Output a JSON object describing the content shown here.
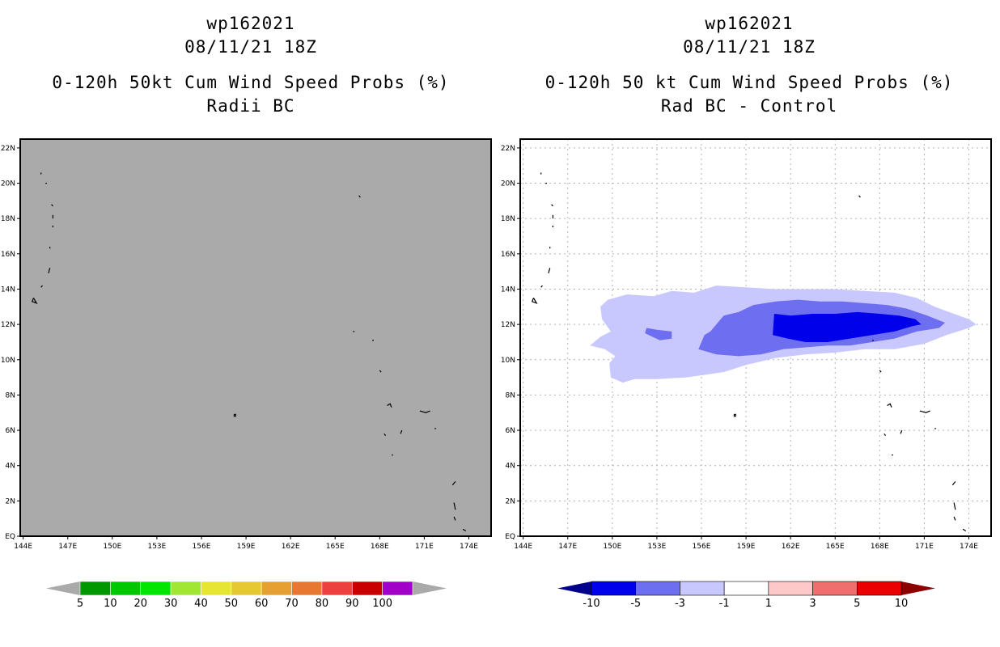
{
  "left_panel": {
    "title_line1": "wp162021",
    "title_line2": "08/11/21 18Z",
    "subtitle_line1": "0-120h 50kt Cum Wind Speed Probs (%)",
    "subtitle_line2": "Radii BC"
  },
  "right_panel": {
    "title_line1": "wp162021",
    "title_line2": "08/11/21 18Z",
    "subtitle_line1": "0-120h 50 kt Cum Wind Speed Probs (%)",
    "subtitle_line2": "Rad BC - Control"
  },
  "chart_data": [
    {
      "type": "heatmap",
      "title": "0-120h 50kt Cum Wind Speed Probs (%) Radii BC",
      "x_ticks": [
        "144E",
        "147E",
        "150E",
        "153E",
        "156E",
        "159E",
        "162E",
        "165E",
        "168E",
        "171E",
        "174E"
      ],
      "y_ticks": [
        "EQ",
        "2N",
        "4N",
        "6N",
        "8N",
        "10N",
        "12N",
        "14N",
        "16N",
        "18N",
        "20N",
        "22N"
      ],
      "xlim": [
        143.8,
        175.5
      ],
      "ylim": [
        0,
        22.5
      ],
      "field": "uniform gray (no probability contours)",
      "fill_color": "#aaaaaa",
      "colorbar": {
        "labels": [
          "5",
          "10",
          "20",
          "30",
          "40",
          "50",
          "60",
          "70",
          "80",
          "90",
          "100"
        ],
        "colors": [
          "#009700",
          "#00c800",
          "#00e600",
          "#a0e632",
          "#e6e632",
          "#e6c832",
          "#e6a032",
          "#e67832",
          "#ef4040",
          "#c80000",
          "#a000c8"
        ],
        "end_colors": [
          "#aaaaaa",
          "#aaaaaa"
        ]
      }
    },
    {
      "type": "heatmap",
      "title": "0-120h 50 kt Cum Wind Speed Probs (%) Rad BC - Control",
      "x_ticks": [
        "144E",
        "147E",
        "150E",
        "153E",
        "156E",
        "159E",
        "162E",
        "165E",
        "168E",
        "171E",
        "174E"
      ],
      "y_ticks": [
        "EQ",
        "2N",
        "4N",
        "6N",
        "8N",
        "10N",
        "12N",
        "14N",
        "16N",
        "18N",
        "20N",
        "22N"
      ],
      "xlim": [
        143.8,
        175.5
      ],
      "ylim": [
        0,
        22.5
      ],
      "contour_levels": [
        {
          "range": "-5 to -3",
          "color": "#6e6ef0",
          "region": "lon 152.8-172, lat 10.3-13.4"
        },
        {
          "range": "-3 to -1",
          "color": "#c8c8ff",
          "region": "lon 148.5-174.5, lat 8.7-14.2"
        },
        {
          "range": "-10 to -5",
          "color": "#0000ea",
          "region": "lon 160.8-170.8, lat 11.0-12.8"
        }
      ],
      "colorbar": {
        "labels": [
          "-10",
          "-5",
          "-3",
          "-1",
          "1",
          "3",
          "5",
          "10"
        ],
        "colors": [
          "#0000ea",
          "#6e6ef0",
          "#c8c8ff",
          "#ffffff",
          "#ffc8c8",
          "#f06e6e",
          "#ea0000"
        ],
        "end_colors": [
          "#00008c",
          "#8c0000"
        ]
      }
    }
  ]
}
